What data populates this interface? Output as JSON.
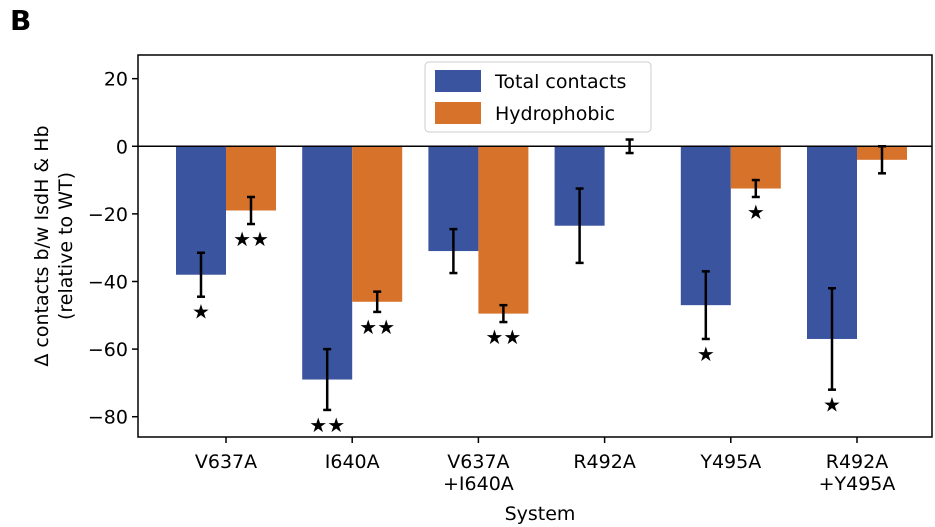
{
  "panel_label": "B",
  "chart_data": {
    "type": "bar",
    "categories": [
      [
        "V637A"
      ],
      [
        "I640A"
      ],
      [
        "V637A",
        "+I640A"
      ],
      [
        "R492A"
      ],
      [
        "Y495A"
      ],
      [
        "R492A",
        "+Y495A"
      ]
    ],
    "series": [
      {
        "name": "Total contacts",
        "color": "#3b54a0",
        "values": [
          -38,
          -69,
          -31,
          -23.5,
          -47,
          -57
        ],
        "error": [
          6.5,
          9,
          6.5,
          11,
          10,
          15
        ],
        "significance": [
          "★",
          "★★",
          "",
          "",
          "★",
          "★"
        ]
      },
      {
        "name": "Hydrophobic",
        "color": "#d6722a",
        "values": [
          -19,
          -46,
          -49.5,
          0,
          -12.5,
          -4
        ],
        "error": [
          4,
          3,
          2.5,
          2,
          2.5,
          4
        ],
        "significance": [
          "★★",
          "★★",
          "★★",
          "",
          "★",
          ""
        ]
      }
    ],
    "xlabel": "System",
    "ylabel": [
      "Δ contacts b/w IsdH & Hb",
      "(relative to WT)"
    ],
    "ylim": [
      -86,
      27
    ],
    "yticks": [
      20,
      0,
      -20,
      -40,
      -60,
      -80
    ],
    "yticklabels": [
      "20",
      "0",
      "−20",
      "−40",
      "−60",
      "−80"
    ],
    "zero_line": true,
    "grid": false,
    "legend": "top-center"
  }
}
